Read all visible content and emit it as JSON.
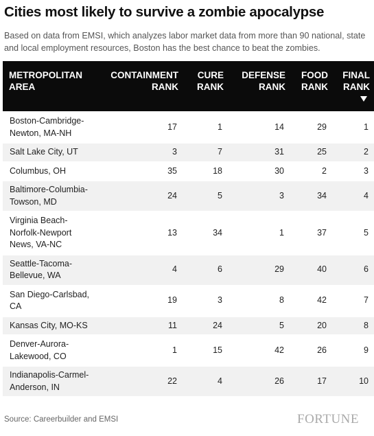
{
  "header": {
    "title": "Cities most likely to survive a zombie apocalypse",
    "subtitle": "Based on data from EMSI, which analyzes labor market data from more than 90 national, state and local employment resources, Boston has the best chance to beat the zombies."
  },
  "table": {
    "columns": [
      "METROPOLITAN AREA",
      "CONTAINMENT RANK",
      "CURE RANK",
      "DEFENSE RANK",
      "FOOD RANK",
      "FINAL RANK"
    ],
    "rows": [
      [
        "Boston-Cambridge-Newton, MA-NH",
        17,
        1,
        14,
        29,
        1
      ],
      [
        "Salt Lake City, UT",
        3,
        7,
        31,
        25,
        2
      ],
      [
        "Columbus, OH",
        35,
        18,
        30,
        2,
        3
      ],
      [
        "Baltimore-Columbia-Towson, MD",
        24,
        5,
        3,
        34,
        4
      ],
      [
        "Virginia Beach-Norfolk-Newport News, VA-NC",
        13,
        34,
        1,
        37,
        5
      ],
      [
        "Seattle-Tacoma-Bellevue, WA",
        4,
        6,
        29,
        40,
        6
      ],
      [
        "San Diego-Carlsbad, CA",
        19,
        3,
        8,
        42,
        7
      ],
      [
        "Kansas City, MO-KS",
        11,
        24,
        5,
        20,
        8
      ],
      [
        "Denver-Aurora-Lakewood, CO",
        1,
        15,
        42,
        26,
        9
      ],
      [
        "Indianapolis-Carmel-Anderson, IN",
        22,
        4,
        26,
        17,
        10
      ]
    ]
  },
  "footer": {
    "source": "Source: Careerbuilder and EMSI",
    "brand": "FORTUNE"
  }
}
